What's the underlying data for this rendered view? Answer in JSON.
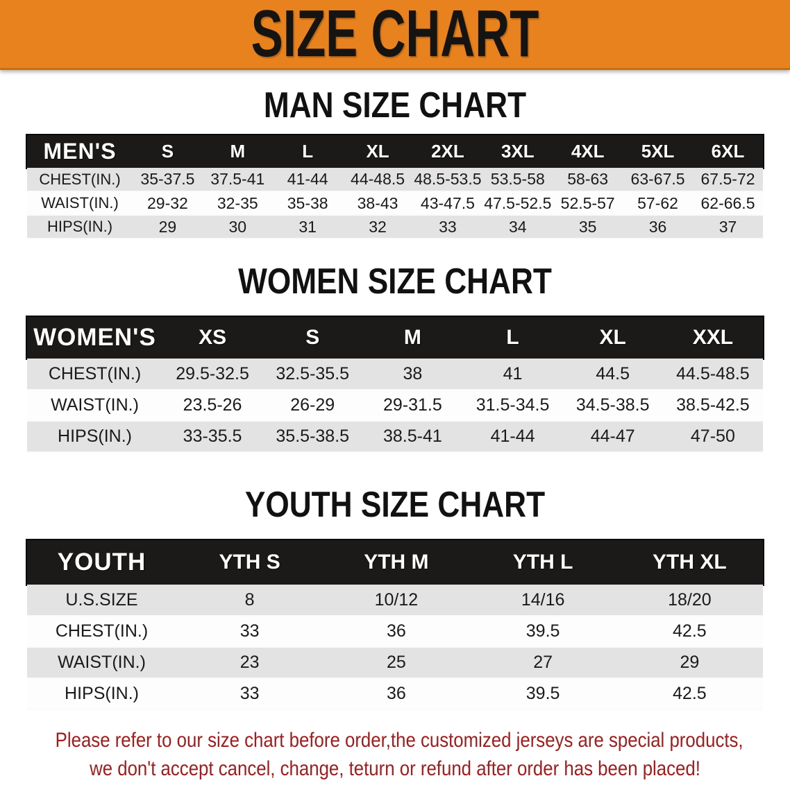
{
  "banner": {
    "title": "SIZE CHART",
    "background_color": "#e8821e",
    "text_color": "#161412"
  },
  "sections": [
    {
      "id": "mens",
      "heading": "MAN SIZE CHART",
      "table": {
        "label": "MEN'S",
        "columns": [
          "S",
          "M",
          "L",
          "XL",
          "2XL",
          "3XL",
          "4XL",
          "5XL",
          "6XL"
        ],
        "rows": [
          {
            "label": "CHEST(IN.)",
            "values": [
              "35-37.5",
              "37.5-41",
              "41-44",
              "44-48.5",
              "48.5-53.5",
              "53.5-58",
              "58-63",
              "63-67.5",
              "67.5-72"
            ]
          },
          {
            "label": "WAIST(IN.)",
            "values": [
              "29-32",
              "32-35",
              "35-38",
              "38-43",
              "43-47.5",
              "47.5-52.5",
              "52.5-57",
              "57-62",
              "62-66.5"
            ]
          },
          {
            "label": "HIPS(IN.)",
            "values": [
              "29",
              "30",
              "31",
              "32",
              "33",
              "34",
              "35",
              "36",
              "37"
            ]
          }
        ]
      }
    },
    {
      "id": "womens",
      "heading": "WOMEN SIZE CHART",
      "table": {
        "label": "WOMEN'S",
        "columns": [
          "XS",
          "S",
          "M",
          "L",
          "XL",
          "XXL"
        ],
        "rows": [
          {
            "label": "CHEST(IN.)",
            "values": [
              "29.5-32.5",
              "32.5-35.5",
              "38",
              "41",
              "44.5",
              "44.5-48.5"
            ]
          },
          {
            "label": "WAIST(IN.)",
            "values": [
              "23.5-26",
              "26-29",
              "29-31.5",
              "31.5-34.5",
              "34.5-38.5",
              "38.5-42.5"
            ]
          },
          {
            "label": "HIPS(IN.)",
            "values": [
              "33-35.5",
              "35.5-38.5",
              "38.5-41",
              "41-44",
              "44-47",
              "47-50"
            ]
          }
        ]
      }
    },
    {
      "id": "youth",
      "heading": "YOUTH SIZE CHART",
      "table": {
        "label": "YOUTH",
        "columns": [
          "YTH S",
          "YTH M",
          "YTH L",
          "YTH XL"
        ],
        "rows": [
          {
            "label": "U.S.SIZE",
            "values": [
              "8",
              "10/12",
              "14/16",
              "18/20"
            ]
          },
          {
            "label": "CHEST(IN.)",
            "values": [
              "33",
              "36",
              "39.5",
              "42.5"
            ]
          },
          {
            "label": "WAIST(IN.)",
            "values": [
              "23",
              "25",
              "27",
              "29"
            ]
          },
          {
            "label": "HIPS(IN.)",
            "values": [
              "33",
              "36",
              "39.5",
              "42.5"
            ]
          }
        ]
      }
    }
  ],
  "disclaimer": {
    "line1": "Please refer to our size chart before order,the customized jerseys are special products,",
    "line2": "we don't accept cancel, change, teturn or refund after order has been placed!",
    "text_color": "#a01d1d"
  },
  "row_colors": {
    "gray": "#e3e3e3",
    "white": "#fdfdfd",
    "header": "#1c1a18"
  }
}
